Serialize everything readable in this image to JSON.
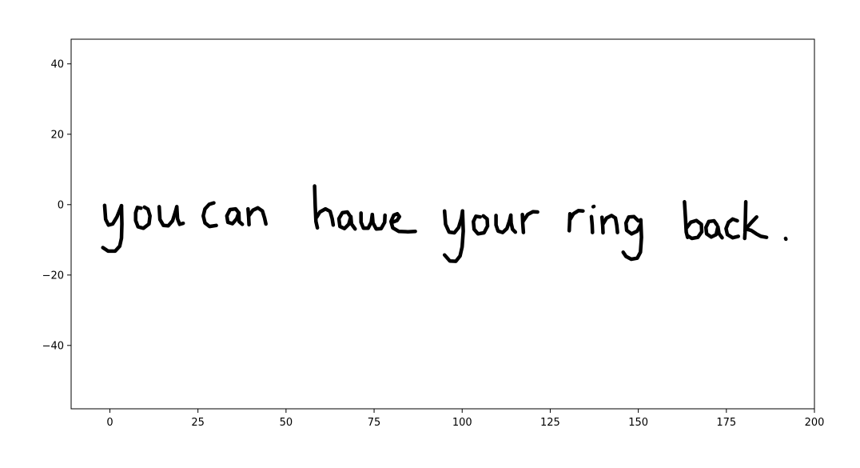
{
  "chart_data": {
    "type": "line",
    "title": "",
    "xlabel": "",
    "ylabel": "",
    "xlim": [
      -11,
      200
    ],
    "ylim": [
      -58,
      47
    ],
    "grid": false,
    "legend": "none",
    "x_ticks": [
      {
        "value": 0,
        "label": "0"
      },
      {
        "value": 25,
        "label": "25"
      },
      {
        "value": 50,
        "label": "50"
      },
      {
        "value": 75,
        "label": "75"
      },
      {
        "value": 100,
        "label": "100"
      },
      {
        "value": 125,
        "label": "125"
      },
      {
        "value": 150,
        "label": "150"
      },
      {
        "value": 175,
        "label": "175"
      },
      {
        "value": 200,
        "label": "200"
      }
    ],
    "y_ticks": [
      {
        "value": 40,
        "label": "40"
      },
      {
        "value": 20,
        "label": "20"
      },
      {
        "value": 0,
        "label": "0"
      },
      {
        "value": -20,
        "label": "−20"
      },
      {
        "value": -40,
        "label": "−40"
      }
    ],
    "stroke_color": "#000000",
    "series": [
      {
        "points": [
          [
            -1.5,
            -0.2
          ],
          [
            -1.2,
            -4.2
          ],
          [
            -0.4,
            -5.8
          ],
          [
            0.8,
            -5.5
          ],
          [
            2.0,
            -3.5
          ],
          [
            3.3,
            -0.3
          ]
        ]
      },
      {
        "points": [
          [
            3.3,
            -0.3
          ],
          [
            3.4,
            -5.5
          ],
          [
            3.3,
            -9.5
          ],
          [
            2.8,
            -11.8
          ],
          [
            1.5,
            -13.2
          ],
          [
            -0.5,
            -13.2
          ],
          [
            -2.0,
            -12.2
          ]
        ]
      },
      {
        "points": [
          [
            8.8,
            -1.0
          ],
          [
            7.8,
            -0.8
          ],
          [
            7.3,
            -2.3
          ],
          [
            7.3,
            -4.5
          ],
          [
            8.0,
            -6.3
          ],
          [
            9.5,
            -6.7
          ],
          [
            11.1,
            -5.5
          ],
          [
            11.4,
            -3.2
          ],
          [
            10.8,
            -1.3
          ],
          [
            9.8,
            -0.7
          ]
        ]
      },
      {
        "points": [
          [
            14.0,
            -0.6
          ],
          [
            14.2,
            -4.2
          ],
          [
            15.2,
            -5.9
          ],
          [
            16.6,
            -6.0
          ],
          [
            17.8,
            -4.6
          ],
          [
            18.6,
            -2.0
          ],
          [
            19.0,
            -0.6
          ]
        ]
      },
      {
        "points": [
          [
            19.0,
            -0.6
          ],
          [
            19.2,
            -4.0
          ],
          [
            19.8,
            -5.6
          ],
          [
            20.8,
            -5.3
          ]
        ]
      },
      {
        "points": [
          [
            29.5,
            0.5
          ],
          [
            28.2,
            0.1
          ],
          [
            27.0,
            -1.2
          ],
          [
            26.5,
            -3.2
          ],
          [
            27.0,
            -5.2
          ],
          [
            28.3,
            -6.2
          ],
          [
            30.2,
            -5.9
          ]
        ]
      },
      {
        "points": [
          [
            36.5,
            -2.2
          ],
          [
            35.7,
            -1.2
          ],
          [
            34.1,
            -1.4
          ],
          [
            33.2,
            -3.2
          ],
          [
            33.5,
            -5.0
          ],
          [
            34.8,
            -5.4
          ],
          [
            36.0,
            -4.0
          ],
          [
            36.6,
            -2.3
          ],
          [
            36.7,
            -4.8
          ],
          [
            37.6,
            -5.6
          ]
        ]
      },
      {
        "points": [
          [
            39.2,
            -1.2
          ],
          [
            39.4,
            -3.5
          ],
          [
            39.5,
            -5.7
          ]
        ]
      },
      {
        "points": [
          [
            39.5,
            -3.1
          ],
          [
            40.6,
            -1.6
          ],
          [
            42.0,
            -0.9
          ],
          [
            43.3,
            -1.8
          ],
          [
            43.9,
            -3.8
          ],
          [
            44.3,
            -5.5
          ]
        ]
      },
      {
        "points": [
          [
            58.1,
            5.3
          ],
          [
            58.3,
            -0.4
          ],
          [
            58.5,
            -4.8
          ],
          [
            58.9,
            -6.6
          ]
        ]
      },
      {
        "points": [
          [
            58.7,
            -3.6
          ],
          [
            59.6,
            -2.1
          ],
          [
            61.2,
            -1.2
          ],
          [
            62.5,
            -1.9
          ],
          [
            63.1,
            -4.0
          ],
          [
            63.4,
            -5.8
          ]
        ]
      },
      {
        "points": [
          [
            68.2,
            -3.3
          ],
          [
            67.4,
            -2.1
          ],
          [
            66.0,
            -2.3
          ],
          [
            65.0,
            -4.0
          ],
          [
            65.3,
            -6.2
          ],
          [
            66.6,
            -6.8
          ],
          [
            67.8,
            -5.6
          ],
          [
            68.4,
            -3.4
          ],
          [
            68.6,
            -5.5
          ],
          [
            69.6,
            -6.9
          ]
        ]
      },
      {
        "points": [
          [
            71.3,
            -2.4
          ],
          [
            71.3,
            -5.0
          ],
          [
            72.0,
            -6.7
          ],
          [
            73.3,
            -6.7
          ],
          [
            74.2,
            -5.0
          ],
          [
            74.5,
            -2.8
          ],
          [
            74.7,
            -5.2
          ],
          [
            75.6,
            -6.9
          ],
          [
            77.0,
            -6.8
          ],
          [
            78.0,
            -5.0
          ],
          [
            78.1,
            -3.0
          ]
        ]
      },
      {
        "points": [
          [
            80.2,
            -5.0
          ],
          [
            81.5,
            -4.5
          ],
          [
            82.2,
            -3.4
          ],
          [
            81.6,
            -2.6
          ],
          [
            80.6,
            -3.0
          ],
          [
            79.8,
            -4.8
          ],
          [
            80.3,
            -6.6
          ],
          [
            82.0,
            -7.6
          ],
          [
            84.6,
            -7.7
          ],
          [
            86.7,
            -7.6
          ]
        ]
      },
      {
        "points": [
          [
            95.0,
            -1.8
          ],
          [
            95.3,
            -5.6
          ],
          [
            96.3,
            -7.8
          ],
          [
            97.8,
            -8.0
          ],
          [
            99.0,
            -6.5
          ],
          [
            99.8,
            -3.8
          ],
          [
            100.1,
            -1.8
          ]
        ]
      },
      {
        "points": [
          [
            100.1,
            -1.8
          ],
          [
            100.3,
            -7.5
          ],
          [
            100.0,
            -12.0
          ],
          [
            99.4,
            -14.6
          ],
          [
            98.2,
            -16.1
          ],
          [
            96.5,
            -16.0
          ],
          [
            95.0,
            -14.3
          ]
        ]
      },
      {
        "points": [
          [
            105.1,
            -3.5
          ],
          [
            103.9,
            -3.3
          ],
          [
            103.2,
            -4.8
          ],
          [
            103.4,
            -7.0
          ],
          [
            104.5,
            -8.3
          ],
          [
            106.2,
            -8.0
          ],
          [
            107.2,
            -6.1
          ],
          [
            107.1,
            -4.1
          ],
          [
            106.0,
            -3.2
          ]
        ]
      },
      {
        "points": [
          [
            109.6,
            -3.1
          ],
          [
            109.6,
            -5.8
          ],
          [
            110.2,
            -7.5
          ],
          [
            111.5,
            -7.9
          ],
          [
            112.7,
            -6.8
          ],
          [
            113.4,
            -4.7
          ],
          [
            113.8,
            -3.0
          ]
        ]
      },
      {
        "points": [
          [
            113.8,
            -3.0
          ],
          [
            113.9,
            -5.2
          ],
          [
            114.3,
            -7.0
          ],
          [
            115.1,
            -7.8
          ]
        ]
      },
      {
        "points": [
          [
            117.1,
            -2.8
          ],
          [
            117.2,
            -5.5
          ],
          [
            117.4,
            -7.9
          ]
        ]
      },
      {
        "points": [
          [
            117.4,
            -4.6
          ],
          [
            118.6,
            -2.8
          ],
          [
            120.1,
            -2.0
          ],
          [
            121.4,
            -2.1
          ]
        ]
      },
      {
        "points": [
          [
            130.6,
            -2.6
          ],
          [
            130.5,
            -5.0
          ],
          [
            130.4,
            -7.4
          ]
        ]
      },
      {
        "points": [
          [
            130.5,
            -4.4
          ],
          [
            131.6,
            -2.6
          ],
          [
            133.0,
            -1.7
          ],
          [
            134.3,
            -1.8
          ]
        ]
      },
      {
        "points": [
          [
            136.7,
            -3.4
          ],
          [
            136.9,
            -5.7
          ],
          [
            137.0,
            -7.9
          ]
        ]
      },
      {
        "points": [
          [
            137.2,
            -0.6
          ],
          [
            137.4,
            -0.5
          ]
        ]
      },
      {
        "points": [
          [
            139.7,
            -3.6
          ],
          [
            139.9,
            -6.0
          ],
          [
            140.0,
            -8.0
          ]
        ]
      },
      {
        "points": [
          [
            140.0,
            -5.5
          ],
          [
            141.0,
            -3.8
          ],
          [
            142.4,
            -3.1
          ],
          [
            143.5,
            -3.8
          ],
          [
            143.9,
            -5.9
          ],
          [
            144.1,
            -7.9
          ]
        ]
      },
      {
        "points": [
          [
            150.0,
            -4.6
          ],
          [
            148.8,
            -3.4
          ],
          [
            147.3,
            -3.5
          ],
          [
            146.5,
            -5.2
          ],
          [
            146.7,
            -7.3
          ],
          [
            148.1,
            -8.3
          ],
          [
            149.7,
            -7.5
          ],
          [
            150.7,
            -5.6
          ]
        ]
      },
      {
        "points": [
          [
            150.7,
            -4.3
          ],
          [
            150.9,
            -9.3
          ],
          [
            150.6,
            -13.5
          ],
          [
            149.7,
            -15.2
          ],
          [
            148.0,
            -15.5
          ],
          [
            146.5,
            -14.7
          ],
          [
            145.7,
            -13.5
          ]
        ]
      },
      {
        "points": [
          [
            163.1,
            0.8
          ],
          [
            163.4,
            -4.0
          ],
          [
            163.6,
            -7.8
          ],
          [
            164.0,
            -9.3
          ]
        ]
      },
      {
        "points": [
          [
            163.8,
            -6.5
          ],
          [
            164.9,
            -5.0
          ],
          [
            166.5,
            -4.5
          ],
          [
            167.9,
            -5.6
          ],
          [
            168.0,
            -7.7
          ],
          [
            166.9,
            -9.3
          ],
          [
            165.2,
            -9.6
          ],
          [
            164.1,
            -8.9
          ]
        ]
      },
      {
        "points": [
          [
            172.3,
            -5.7
          ],
          [
            171.5,
            -4.6
          ],
          [
            170.0,
            -4.8
          ],
          [
            169.2,
            -6.5
          ],
          [
            169.4,
            -8.3
          ],
          [
            170.7,
            -9.2
          ],
          [
            172.1,
            -8.5
          ],
          [
            172.6,
            -6.3
          ],
          [
            172.9,
            -8.2
          ],
          [
            173.8,
            -9.4
          ]
        ]
      },
      {
        "points": [
          [
            178.1,
            -4.6
          ],
          [
            176.8,
            -4.1
          ],
          [
            175.6,
            -5.0
          ],
          [
            174.9,
            -6.8
          ],
          [
            175.3,
            -8.5
          ],
          [
            176.8,
            -9.4
          ],
          [
            178.4,
            -9.0
          ]
        ]
      },
      {
        "points": [
          [
            180.5,
            0.8
          ],
          [
            180.4,
            -4.0
          ],
          [
            180.3,
            -7.8
          ],
          [
            180.2,
            -9.6
          ]
        ]
      },
      {
        "points": [
          [
            183.6,
            -3.5
          ],
          [
            181.9,
            -5.3
          ],
          [
            180.5,
            -6.9
          ],
          [
            182.0,
            -7.3
          ],
          [
            183.5,
            -8.3
          ],
          [
            184.8,
            -9.0
          ],
          [
            186.4,
            -9.3
          ]
        ]
      },
      {
        "points": [
          [
            191.8,
            -9.6
          ],
          [
            191.9,
            -9.8
          ]
        ]
      }
    ]
  }
}
